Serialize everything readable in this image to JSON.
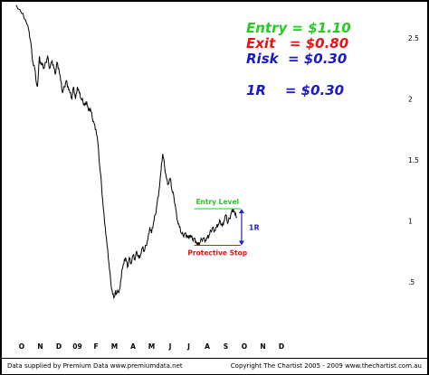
{
  "annotations": {
    "entry": "Entry = $1.10",
    "exit": "Exit   = $0.80",
    "risk": "Risk  = $0.30",
    "one_r": "1R    = $0.30",
    "entry_level": "Entry Level",
    "protective_stop": "Protective Stop",
    "r_marker": "1R"
  },
  "footer": {
    "left": "Data supplied by Premium Data www.premiumdata.net",
    "right": "Copyright The Chartist 2005 - 2009  www.thechartist.com.au"
  },
  "colors": {
    "entry": "#22cc22",
    "exit": "#ee1111",
    "risk": "#1a1acc",
    "one_r": "#1a1acc",
    "price": "#000000",
    "entry_level": "#22cc22",
    "protective_stop": "#ee1111",
    "r_marker": "#2222cc"
  },
  "chart_data": {
    "type": "line",
    "title": "",
    "xlabel": "",
    "ylabel": "",
    "x_tick_labels": [
      "O",
      "N",
      "D",
      "09",
      "F",
      "M",
      "A",
      "M",
      "J",
      "J",
      "A",
      "S",
      "O",
      "N",
      "D"
    ],
    "y_tick_labels": [
      "2.5",
      "2",
      "1.5",
      "1",
      ".5"
    ],
    "y_ticks": [
      2.5,
      2.0,
      1.5,
      1.0,
      0.5
    ],
    "ylim": [
      0.25,
      2.8
    ],
    "x_range_months": [
      0,
      14
    ],
    "grid": false,
    "series": [
      {
        "x": [
          -0.3,
          0.0,
          0.2,
          0.4,
          0.5,
          0.6,
          0.7,
          0.8,
          0.85,
          0.95,
          1.0,
          1.1,
          1.2,
          1.3,
          1.4,
          1.5,
          1.6,
          1.7,
          1.8,
          1.9,
          2.0,
          2.1,
          2.2,
          2.3,
          2.4,
          2.5,
          2.6,
          2.7,
          2.8,
          2.9,
          3.0,
          3.1,
          3.2,
          3.3,
          3.4,
          3.5,
          3.6,
          3.7,
          3.8,
          3.9,
          4.0,
          4.1,
          4.2,
          4.3,
          4.4,
          4.5,
          4.6,
          4.7,
          4.8,
          4.9,
          5.0,
          5.05,
          5.1,
          5.2,
          5.3,
          5.4,
          5.5,
          5.6,
          5.7,
          5.8,
          5.9,
          6.0,
          6.1,
          6.2,
          6.3,
          6.4,
          6.5,
          6.6,
          6.7,
          6.8,
          6.9,
          7.0,
          7.1,
          7.2,
          7.3,
          7.4,
          7.5,
          7.6,
          7.7,
          7.8,
          7.9,
          8.0,
          8.1,
          8.2,
          8.3,
          8.4,
          8.5,
          8.6,
          8.7,
          8.8,
          8.9,
          9.0,
          9.1,
          9.2,
          9.3,
          9.4,
          9.5,
          9.6,
          9.7,
          9.8,
          9.9,
          10.0,
          10.1,
          10.2,
          10.3,
          10.4,
          10.5,
          10.6,
          10.7,
          10.8,
          10.9,
          11.0,
          11.1,
          11.2,
          11.3,
          11.4,
          11.5,
          11.6
        ],
        "y": [
          2.77,
          2.7,
          2.65,
          2.55,
          2.45,
          2.3,
          2.25,
          2.12,
          2.1,
          2.35,
          2.3,
          2.28,
          2.25,
          2.3,
          2.35,
          2.25,
          2.3,
          2.28,
          2.2,
          2.3,
          2.25,
          2.15,
          2.05,
          2.1,
          2.15,
          2.1,
          2.05,
          2.0,
          2.1,
          2.0,
          2.1,
          2.05,
          2.0,
          1.98,
          1.95,
          1.98,
          1.9,
          1.92,
          1.85,
          1.8,
          1.75,
          1.65,
          1.45,
          1.3,
          1.1,
          0.95,
          0.8,
          0.65,
          0.5,
          0.4,
          0.38,
          0.42,
          0.4,
          0.42,
          0.45,
          0.6,
          0.65,
          0.7,
          0.62,
          0.7,
          0.65,
          0.72,
          0.68,
          0.75,
          0.7,
          0.72,
          0.78,
          0.75,
          0.8,
          0.85,
          0.95,
          0.9,
          0.98,
          1.05,
          1.15,
          1.25,
          1.4,
          1.55,
          1.45,
          1.35,
          1.3,
          1.35,
          1.25,
          1.2,
          1.1,
          1.0,
          0.95,
          0.9,
          0.88,
          0.9,
          0.88,
          0.86,
          0.88,
          0.85,
          0.86,
          0.83,
          0.8,
          0.82,
          0.85,
          0.86,
          0.84,
          0.86,
          0.88,
          0.92,
          0.95,
          0.92,
          0.95,
          0.97,
          1.0,
          0.96,
          1.0,
          1.05,
          0.98,
          1.02,
          1.07,
          1.1,
          1.05,
          1.03
        ]
      }
    ],
    "reference_lines": [
      {
        "label": "Entry Level",
        "value": 1.1,
        "x_start": 9.3,
        "x_end": 11.8
      },
      {
        "label": "Protective Stop",
        "value": 0.8,
        "x_start": 9.3,
        "x_end": 11.8
      }
    ]
  }
}
